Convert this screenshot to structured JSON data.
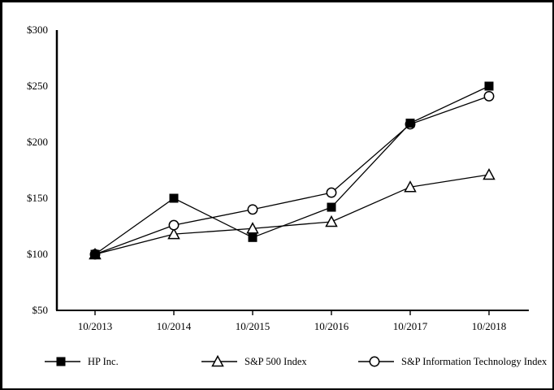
{
  "chart_data": {
    "type": "line",
    "title": "",
    "xlabel": "",
    "ylabel": "",
    "x": [
      "10/2013",
      "10/2014",
      "10/2015",
      "10/2016",
      "10/2017",
      "10/2018"
    ],
    "series": [
      {
        "name": "HP Inc.",
        "marker": "filled-square",
        "values": [
          100,
          150,
          115,
          142,
          217,
          250
        ]
      },
      {
        "name": "S&P 500 Index",
        "marker": "open-triangle",
        "values": [
          100,
          118,
          123,
          129,
          160,
          171
        ]
      },
      {
        "name": "S&P Information Technology Index",
        "marker": "open-circle",
        "values": [
          100,
          126,
          140,
          155,
          216,
          241
        ]
      }
    ],
    "ylim": [
      50,
      300
    ],
    "y_ticks": [
      300,
      250,
      200,
      150,
      100,
      50
    ],
    "y_tick_labels": [
      "$300",
      "$250",
      "$200",
      "$150",
      "$100",
      "$50"
    ],
    "grid": false,
    "legend_position": "bottom",
    "line_color": "#000000",
    "background_color": "#ffffff"
  }
}
